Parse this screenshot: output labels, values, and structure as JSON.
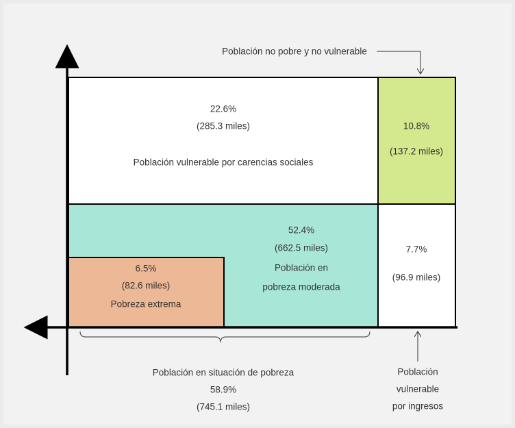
{
  "top_label": "Población no pobre y no vulnerable",
  "cells": {
    "vulnerable_social": {
      "percent": "22.6%",
      "amount": "(285.3 miles)",
      "label": "Población vulnerable por carencias sociales"
    },
    "non_poor": {
      "percent": "10.8%",
      "amount": "(137.2 miles)"
    },
    "moderate": {
      "percent": "52.4%",
      "amount": "(662.5 miles)",
      "label_lines": [
        "Población en",
        "pobreza moderada"
      ]
    },
    "extreme": {
      "percent": "6.5%",
      "amount": "(82.6 miles)",
      "label": "Pobreza extrema"
    },
    "vulnerable_income": {
      "percent": "7.7%",
      "amount": "(96.9 miles)"
    }
  },
  "poverty_total": {
    "label": "Población en situación de pobreza",
    "percent": "58.9%",
    "amount": "(745.1 miles)"
  },
  "income_label_lines": [
    "Población",
    "vulnerable",
    "por ingresos"
  ]
}
